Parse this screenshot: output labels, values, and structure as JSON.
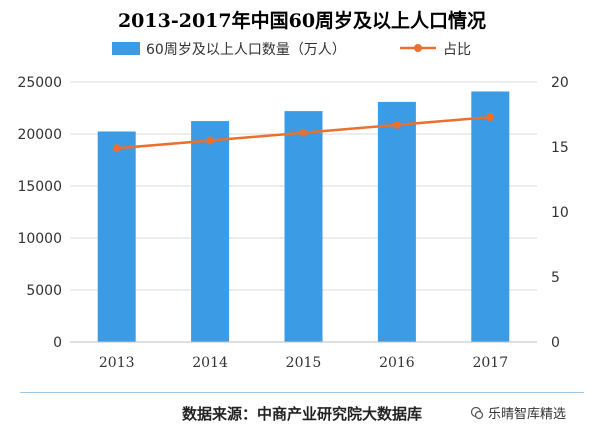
{
  "chart_data": {
    "type": "bar",
    "title": "2013-2017年中国60周岁及以上人口情况",
    "categories": [
      "2013",
      "2014",
      "2015",
      "2016",
      "2017"
    ],
    "series": [
      {
        "name": "60周岁及以上人口数量（万人）",
        "type": "bar",
        "axis": "left",
        "values": [
          20243,
          21242,
          22200,
          23086,
          24090
        ],
        "color": "#3c9be5"
      },
      {
        "name": "占比",
        "type": "line",
        "axis": "right",
        "values": [
          14.9,
          15.5,
          16.1,
          16.7,
          17.3
        ],
        "color": "#e9702f"
      }
    ],
    "y_left": {
      "range": [
        0,
        25000
      ],
      "ticks": [
        "0",
        "5000",
        "10000",
        "15000",
        "20000",
        "25000"
      ]
    },
    "y_right": {
      "range": [
        0,
        20
      ],
      "ticks": [
        "0",
        "5",
        "10",
        "15",
        "20"
      ]
    },
    "grid": true,
    "legend": "top-center"
  },
  "source_text": "数据来源：中商产业研究院大数据库",
  "watermark_text": "乐晴智库精选"
}
